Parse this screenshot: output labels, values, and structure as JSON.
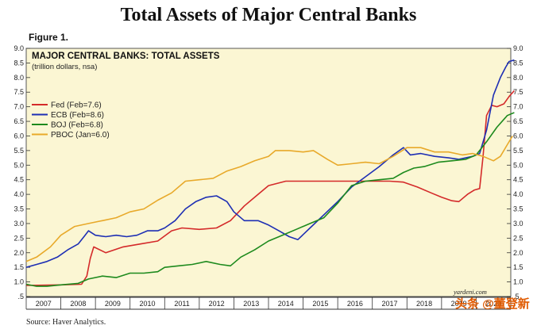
{
  "page": {
    "title": "Total Assets of Major Central Banks",
    "figure_label": "Figure 1.",
    "source": "Source: Haver Analytics.",
    "watermark": "头条 @董登新"
  },
  "chart_data": {
    "type": "line",
    "title": "MAJOR CENTRAL BANKS: TOTAL ASSETS",
    "subtitle": "(trillion dollars, nsa)",
    "credit": "yardeni.com",
    "xlabel": "",
    "ylabel": "",
    "xlim": [
      2007.0,
      2021.0
    ],
    "ylim": [
      0.5,
      9.0
    ],
    "x_ticks": [
      "2007",
      "2008",
      "2009",
      "2010",
      "2011",
      "2012",
      "2013",
      "2014",
      "2015",
      "2016",
      "2017",
      "2018",
      "2019",
      "2020"
    ],
    "y_ticks": [
      "9.0",
      "8.5",
      "8.0",
      "7.5",
      "7.0",
      "6.5",
      "6.0",
      "5.5",
      "5.0",
      "4.5",
      "4.0",
      "3.5",
      "3.0",
      "2.5",
      "2.0",
      "1.5",
      "1.0",
      ".5"
    ],
    "grid": false,
    "legend_position": "left",
    "background": "#fbf6d3",
    "series": [
      {
        "name": "Fed (Feb=7.6)",
        "color": "#d42a2a",
        "points": [
          [
            2007.0,
            0.88
          ],
          [
            2008.0,
            0.9
          ],
          [
            2008.6,
            0.92
          ],
          [
            2008.75,
            1.2
          ],
          [
            2008.85,
            1.8
          ],
          [
            2008.95,
            2.2
          ],
          [
            2009.3,
            2.0
          ],
          [
            2009.8,
            2.2
          ],
          [
            2010.3,
            2.3
          ],
          [
            2010.8,
            2.4
          ],
          [
            2011.2,
            2.75
          ],
          [
            2011.5,
            2.85
          ],
          [
            2012.0,
            2.8
          ],
          [
            2012.5,
            2.85
          ],
          [
            2012.9,
            3.1
          ],
          [
            2013.3,
            3.6
          ],
          [
            2013.7,
            4.0
          ],
          [
            2014.0,
            4.3
          ],
          [
            2014.5,
            4.45
          ],
          [
            2015.0,
            4.45
          ],
          [
            2015.5,
            4.45
          ],
          [
            2016.0,
            4.45
          ],
          [
            2016.5,
            4.45
          ],
          [
            2017.0,
            4.45
          ],
          [
            2017.5,
            4.45
          ],
          [
            2017.9,
            4.42
          ],
          [
            2018.3,
            4.25
          ],
          [
            2018.7,
            4.05
          ],
          [
            2019.0,
            3.9
          ],
          [
            2019.3,
            3.78
          ],
          [
            2019.5,
            3.75
          ],
          [
            2019.75,
            4.0
          ],
          [
            2019.95,
            4.15
          ],
          [
            2020.1,
            4.2
          ],
          [
            2020.2,
            5.3
          ],
          [
            2020.3,
            6.7
          ],
          [
            2020.45,
            7.05
          ],
          [
            2020.6,
            7.0
          ],
          [
            2020.8,
            7.1
          ],
          [
            2020.95,
            7.35
          ],
          [
            2021.1,
            7.55
          ]
        ]
      },
      {
        "name": "ECB (Feb=8.6)",
        "color": "#1e2fb4",
        "points": [
          [
            2007.0,
            1.5
          ],
          [
            2007.3,
            1.6
          ],
          [
            2007.6,
            1.7
          ],
          [
            2007.9,
            1.85
          ],
          [
            2008.2,
            2.1
          ],
          [
            2008.5,
            2.3
          ],
          [
            2008.7,
            2.6
          ],
          [
            2008.8,
            2.75
          ],
          [
            2009.0,
            2.6
          ],
          [
            2009.3,
            2.55
          ],
          [
            2009.6,
            2.6
          ],
          [
            2009.9,
            2.55
          ],
          [
            2010.2,
            2.6
          ],
          [
            2010.5,
            2.75
          ],
          [
            2010.8,
            2.75
          ],
          [
            2011.0,
            2.85
          ],
          [
            2011.3,
            3.1
          ],
          [
            2011.6,
            3.5
          ],
          [
            2011.9,
            3.75
          ],
          [
            2012.2,
            3.9
          ],
          [
            2012.5,
            3.95
          ],
          [
            2012.8,
            3.75
          ],
          [
            2013.0,
            3.4
          ],
          [
            2013.3,
            3.1
          ],
          [
            2013.7,
            3.1
          ],
          [
            2014.0,
            2.95
          ],
          [
            2014.3,
            2.75
          ],
          [
            2014.6,
            2.55
          ],
          [
            2014.85,
            2.45
          ],
          [
            2015.2,
            2.85
          ],
          [
            2015.6,
            3.3
          ],
          [
            2016.0,
            3.75
          ],
          [
            2016.4,
            4.25
          ],
          [
            2016.8,
            4.6
          ],
          [
            2017.2,
            4.95
          ],
          [
            2017.6,
            5.35
          ],
          [
            2017.9,
            5.6
          ],
          [
            2018.1,
            5.35
          ],
          [
            2018.4,
            5.4
          ],
          [
            2018.8,
            5.3
          ],
          [
            2019.2,
            5.25
          ],
          [
            2019.5,
            5.2
          ],
          [
            2019.9,
            5.3
          ],
          [
            2020.1,
            5.4
          ],
          [
            2020.3,
            6.2
          ],
          [
            2020.5,
            7.4
          ],
          [
            2020.7,
            8.0
          ],
          [
            2020.85,
            8.35
          ],
          [
            2020.95,
            8.55
          ],
          [
            2021.1,
            8.6
          ]
        ]
      },
      {
        "name": "BOJ (Feb=6.8)",
        "color": "#1d8a1d",
        "points": [
          [
            2007.0,
            0.92
          ],
          [
            2007.3,
            0.85
          ],
          [
            2007.6,
            0.85
          ],
          [
            2008.0,
            0.9
          ],
          [
            2008.5,
            0.95
          ],
          [
            2008.8,
            1.1
          ],
          [
            2009.2,
            1.2
          ],
          [
            2009.6,
            1.15
          ],
          [
            2010.0,
            1.3
          ],
          [
            2010.4,
            1.3
          ],
          [
            2010.8,
            1.35
          ],
          [
            2011.0,
            1.5
          ],
          [
            2011.4,
            1.55
          ],
          [
            2011.8,
            1.6
          ],
          [
            2012.2,
            1.7
          ],
          [
            2012.6,
            1.6
          ],
          [
            2012.9,
            1.55
          ],
          [
            2013.2,
            1.85
          ],
          [
            2013.6,
            2.1
          ],
          [
            2014.0,
            2.4
          ],
          [
            2014.4,
            2.6
          ],
          [
            2014.8,
            2.8
          ],
          [
            2015.2,
            3.0
          ],
          [
            2015.6,
            3.2
          ],
          [
            2016.0,
            3.7
          ],
          [
            2016.4,
            4.3
          ],
          [
            2016.8,
            4.45
          ],
          [
            2017.2,
            4.5
          ],
          [
            2017.6,
            4.55
          ],
          [
            2017.9,
            4.75
          ],
          [
            2018.2,
            4.9
          ],
          [
            2018.5,
            4.95
          ],
          [
            2018.9,
            5.1
          ],
          [
            2019.3,
            5.15
          ],
          [
            2019.7,
            5.2
          ],
          [
            2020.0,
            5.35
          ],
          [
            2020.3,
            5.8
          ],
          [
            2020.6,
            6.3
          ],
          [
            2020.9,
            6.7
          ],
          [
            2021.1,
            6.8
          ]
        ]
      },
      {
        "name": "PBOC (Jan=6.0)",
        "color": "#e8a92a",
        "points": [
          [
            2007.0,
            1.7
          ],
          [
            2007.3,
            1.85
          ],
          [
            2007.7,
            2.2
          ],
          [
            2008.0,
            2.6
          ],
          [
            2008.4,
            2.9
          ],
          [
            2008.8,
            3.0
          ],
          [
            2009.2,
            3.1
          ],
          [
            2009.6,
            3.2
          ],
          [
            2010.0,
            3.4
          ],
          [
            2010.4,
            3.5
          ],
          [
            2010.8,
            3.8
          ],
          [
            2011.2,
            4.05
          ],
          [
            2011.6,
            4.45
          ],
          [
            2012.0,
            4.5
          ],
          [
            2012.4,
            4.55
          ],
          [
            2012.8,
            4.8
          ],
          [
            2013.2,
            4.95
          ],
          [
            2013.6,
            5.15
          ],
          [
            2014.0,
            5.3
          ],
          [
            2014.2,
            5.5
          ],
          [
            2014.6,
            5.5
          ],
          [
            2015.0,
            5.45
          ],
          [
            2015.3,
            5.5
          ],
          [
            2015.7,
            5.2
          ],
          [
            2016.0,
            5.0
          ],
          [
            2016.4,
            5.05
          ],
          [
            2016.8,
            5.1
          ],
          [
            2017.2,
            5.05
          ],
          [
            2017.6,
            5.3
          ],
          [
            2018.0,
            5.6
          ],
          [
            2018.4,
            5.6
          ],
          [
            2018.8,
            5.45
          ],
          [
            2019.2,
            5.45
          ],
          [
            2019.6,
            5.35
          ],
          [
            2019.9,
            5.4
          ],
          [
            2020.2,
            5.3
          ],
          [
            2020.5,
            5.15
          ],
          [
            2020.7,
            5.3
          ],
          [
            2020.9,
            5.7
          ],
          [
            2021.05,
            6.0
          ]
        ]
      }
    ]
  }
}
